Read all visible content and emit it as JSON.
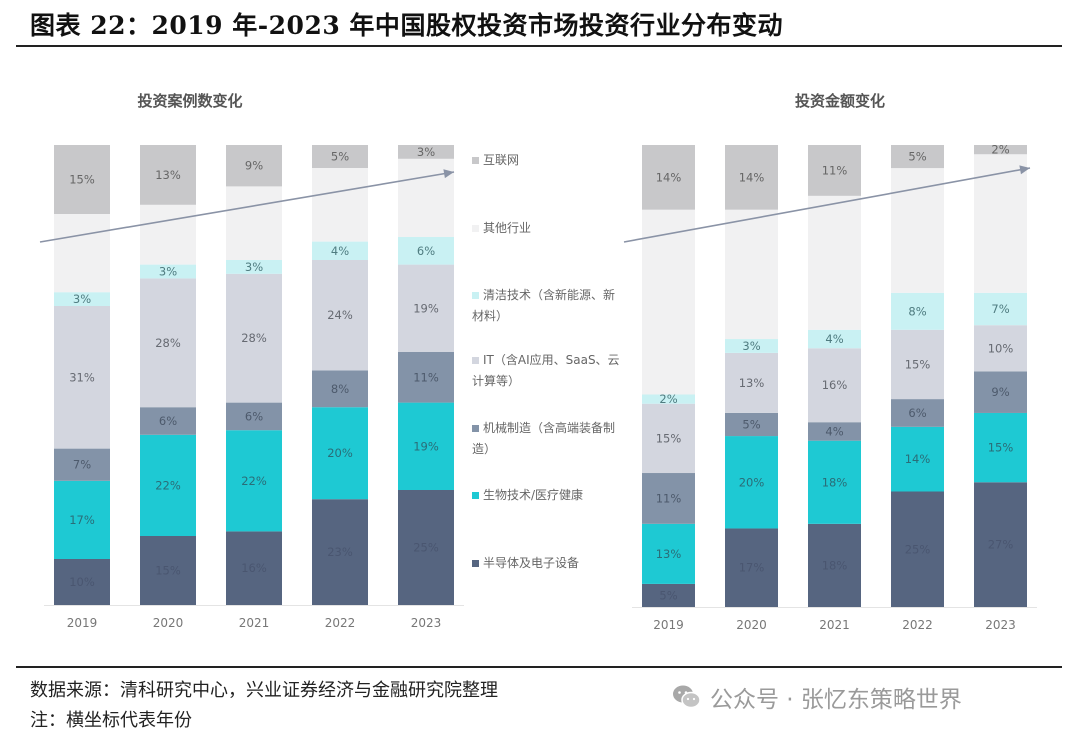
{
  "figure": {
    "title": "图表 22：2019 年-2023 年中国股权投资市场投资行业分布变动",
    "source": "数据来源：清科研究中心，兴业证券经济与金融研究院整理",
    "note": "注：横坐标代表年份",
    "watermark": "公众号 · 张忆东策略世界",
    "watermark_icon": "wechat-icon"
  },
  "legend": [
    {
      "label": "互联网",
      "color": "#c8c8ca"
    },
    {
      "label": "其他行业",
      "color": "#f1f1f2"
    },
    {
      "label": "清洁技术（含新能源、新材料）",
      "color": "#c9f1f3"
    },
    {
      "label": "IT（含AI应用、SaaS、云计算等）",
      "color": "#d3d6df"
    },
    {
      "label": "机械制造（含高端装备制造）",
      "color": "#8393a8"
    },
    {
      "label": "生物技术/医疗健康",
      "color": "#1ec9d3"
    },
    {
      "label": "半导体及电子设备",
      "color": "#566580"
    }
  ],
  "chart_data": [
    {
      "type": "bar",
      "stacked": true,
      "title": "投资案例数变化",
      "xlabel": "",
      "ylabel": "",
      "ylim": [
        0,
        100
      ],
      "categories": [
        "2019",
        "2020",
        "2021",
        "2022",
        "2023"
      ],
      "series": [
        {
          "name": "半导体及电子设备",
          "values": [
            10,
            15,
            16,
            23,
            25
          ],
          "labels": [
            "10%",
            "15%",
            "16%",
            "23%",
            "25%"
          ]
        },
        {
          "name": "生物技术/医疗健康",
          "values": [
            17,
            22,
            22,
            20,
            19
          ],
          "labels": [
            "17%",
            "22%",
            "22%",
            "20%",
            "19%"
          ]
        },
        {
          "name": "机械制造（含高端装备制造）",
          "values": [
            7,
            6,
            6,
            8,
            11
          ],
          "labels": [
            "7%",
            "6%",
            "6%",
            "8%",
            "11%"
          ]
        },
        {
          "name": "IT（含AI应用、SaaS、云计算等）",
          "values": [
            31,
            28,
            28,
            24,
            19
          ],
          "labels": [
            "31%",
            "28%",
            "28%",
            "24%",
            "19%"
          ]
        },
        {
          "name": "清洁技术（含新能源、新材料）",
          "values": [
            3,
            3,
            3,
            4,
            6
          ],
          "labels": [
            "3%",
            "3%",
            "3%",
            "4%",
            "6%"
          ]
        },
        {
          "name": "其他行业",
          "values": [
            17,
            13,
            16,
            16,
            17
          ],
          "labels": [
            "",
            "",
            "",
            "",
            ""
          ]
        },
        {
          "name": "互联网",
          "values": [
            15,
            13,
            9,
            5,
            3
          ],
          "labels": [
            "15%",
            "13%",
            "9%",
            "5%",
            "3%"
          ]
        }
      ],
      "annotations": [
        "upward trend arrow"
      ]
    },
    {
      "type": "bar",
      "stacked": true,
      "title": "投资金额变化",
      "xlabel": "",
      "ylabel": "",
      "ylim": [
        0,
        100
      ],
      "categories": [
        "2019",
        "2020",
        "2021",
        "2022",
        "2023"
      ],
      "series": [
        {
          "name": "半导体及电子设备",
          "values": [
            5,
            17,
            18,
            25,
            27
          ],
          "labels": [
            "5%",
            "17%",
            "18%",
            "25%",
            "27%"
          ]
        },
        {
          "name": "生物技术/医疗健康",
          "values": [
            13,
            20,
            18,
            14,
            15
          ],
          "labels": [
            "13%",
            "20%",
            "18%",
            "14%",
            "15%"
          ]
        },
        {
          "name": "机械制造（含高端装备制造）",
          "values": [
            11,
            5,
            4,
            6,
            9
          ],
          "labels": [
            "11%",
            "5%",
            "4%",
            "6%",
            "9%"
          ]
        },
        {
          "name": "IT（含AI应用、SaaS、云计算等）",
          "values": [
            15,
            13,
            16,
            15,
            10
          ],
          "labels": [
            "15%",
            "13%",
            "16%",
            "15%",
            "10%"
          ]
        },
        {
          "name": "清洁技术（含新能源、新材料）",
          "values": [
            2,
            3,
            4,
            8,
            7
          ],
          "labels": [
            "2%",
            "3%",
            "4%",
            "8%",
            "7%"
          ]
        },
        {
          "name": "其他行业",
          "values": [
            40,
            28,
            29,
            27,
            30
          ],
          "labels": [
            "",
            "",
            "",
            "",
            ""
          ]
        },
        {
          "name": "互联网",
          "values": [
            14,
            14,
            11,
            5,
            2
          ],
          "labels": [
            "14%",
            "14%",
            "11%",
            "5%",
            "2%"
          ]
        }
      ],
      "annotations": [
        "upward trend arrow"
      ]
    }
  ]
}
